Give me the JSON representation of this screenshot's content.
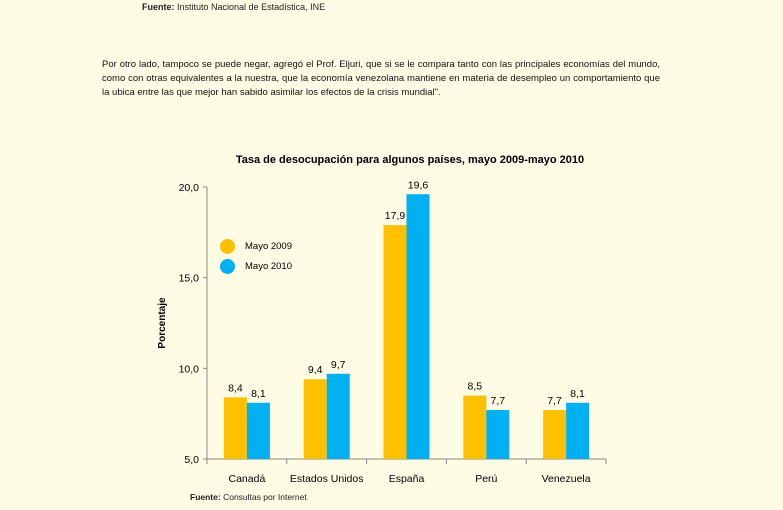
{
  "top_source": {
    "label": "Fuente:",
    "text": "Instituto Nacional de Estadística, INE"
  },
  "paragraph": "Por otro lado, tampoco se puede negar, agregó el Prof. Eljuri, que si se le compara tanto con las principales economías del mundo, como con otras equivalentes a la nuestra, que la economía venezolana mantiene en materia de desempleo un comportamiento que la ubica entre las que mejor han sabido asimilar los efectos de la crisis mundial\".",
  "bottom_source": {
    "label": "Fuente:",
    "text": "Consultas por Internet"
  },
  "colors": {
    "mayo_2009": "#FFC000",
    "mayo_2010": "#00B0F0",
    "axis": "#888888"
  },
  "chart_data": {
    "type": "bar",
    "title": "Tasa de desocupación  para algunos países, mayo 2009-mayo 2010",
    "xlabel": "",
    "ylabel": "Porcentaje",
    "ylim": [
      5,
      20
    ],
    "yticks": [
      "5,0",
      "10,0",
      "15,0",
      "20,0"
    ],
    "ytick_values": [
      5,
      10,
      15,
      20
    ],
    "categories": [
      "Canadá",
      "Estados Unidos",
      "España",
      "Perú",
      "Venezuela"
    ],
    "series": [
      {
        "name": "Mayo 2009",
        "values": [
          8.4,
          9.4,
          17.9,
          8.5,
          7.7
        ],
        "labels": [
          "8,4",
          "9,4",
          "17,9",
          "8,5",
          "7,7"
        ]
      },
      {
        "name": "Mayo 2010",
        "values": [
          8.1,
          9.7,
          19.6,
          7.7,
          8.1
        ],
        "labels": [
          "8,1",
          "9,7",
          "19,6",
          "7,7",
          "8,1"
        ]
      }
    ],
    "grid": false,
    "legend_position": "top-left"
  }
}
